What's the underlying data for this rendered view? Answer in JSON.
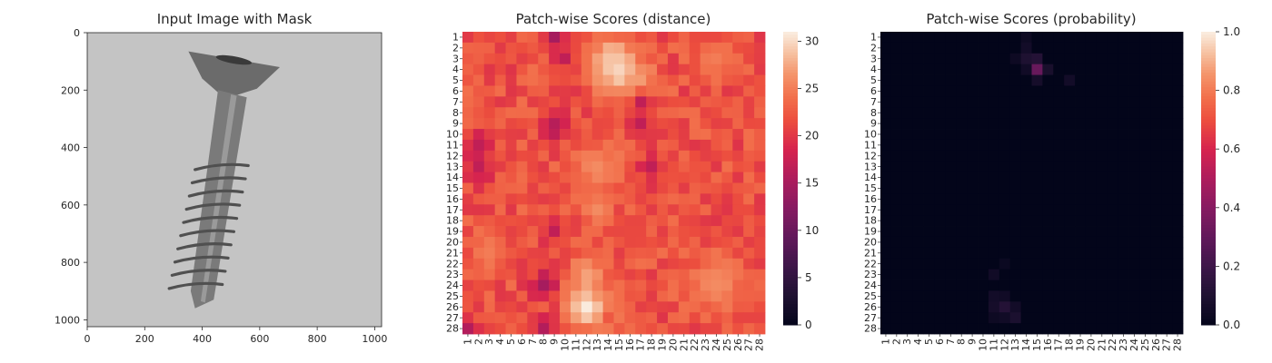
{
  "chart_data": [
    {
      "type": "image",
      "title": "Input Image with Mask",
      "xlim": [
        0,
        1024
      ],
      "ylim": [
        1024,
        0
      ],
      "xticks": [
        0,
        200,
        400,
        600,
        800,
        1000
      ],
      "yticks": [
        0,
        200,
        400,
        600,
        800,
        1000
      ],
      "background_gray": "#c4c4c4",
      "screw_color": "#6b6b6b",
      "mask_visible": false
    },
    {
      "type": "heatmap",
      "title": "Patch-wise Scores (distance)",
      "rows": 28,
      "cols": 28,
      "row_labels": [
        "1",
        "2",
        "3",
        "4",
        "5",
        "6",
        "7",
        "8",
        "9",
        "10",
        "11",
        "12",
        "13",
        "14",
        "15",
        "16",
        "17",
        "18",
        "19",
        "20",
        "21",
        "22",
        "23",
        "24",
        "25",
        "26",
        "27",
        "28"
      ],
      "col_labels": [
        "1",
        "2",
        "3",
        "4",
        "5",
        "6",
        "7",
        "8",
        "9",
        "10",
        "11",
        "12",
        "13",
        "14",
        "15",
        "16",
        "17",
        "18",
        "19",
        "20",
        "21",
        "22",
        "23",
        "24",
        "25",
        "26",
        "27",
        "28"
      ],
      "colorbar": {
        "min": 0,
        "max": 31,
        "ticks": [
          0,
          5,
          10,
          15,
          20,
          25,
          30
        ]
      },
      "colormap": "rocket",
      "baseline_value": 22,
      "hotspots": [
        {
          "row": 4,
          "col": 15,
          "value": 31,
          "spread": 1.4
        },
        {
          "row": 3,
          "col": 14,
          "value": 29,
          "spread": 1.2
        },
        {
          "row": 5,
          "col": 17,
          "value": 27,
          "spread": 0.9
        },
        {
          "row": 13,
          "col": 13,
          "value": 26,
          "spread": 1.6
        },
        {
          "row": 17,
          "col": 13,
          "value": 26,
          "spread": 1.0
        },
        {
          "row": 23,
          "col": 12,
          "value": 27,
          "spread": 1.2
        },
        {
          "row": 26,
          "col": 12,
          "value": 31,
          "spread": 1.3
        },
        {
          "row": 24,
          "col": 24,
          "value": 26,
          "spread": 1.8
        },
        {
          "row": 21,
          "col": 3,
          "value": 25,
          "spread": 1.2
        },
        {
          "row": 3,
          "col": 24,
          "value": 25,
          "spread": 1.3
        }
      ],
      "coldspots": [
        {
          "row": 1,
          "col": 9,
          "value": 15,
          "spread": 0.7
        },
        {
          "row": 3,
          "col": 10,
          "value": 17,
          "spread": 0.7
        },
        {
          "row": 9,
          "col": 9,
          "value": 16,
          "spread": 0.7
        },
        {
          "row": 10,
          "col": 9,
          "value": 17,
          "spread": 0.7
        },
        {
          "row": 11,
          "col": 2,
          "value": 17,
          "spread": 0.9
        },
        {
          "row": 13,
          "col": 2,
          "value": 17,
          "spread": 0.9
        },
        {
          "row": 19,
          "col": 9,
          "value": 17,
          "spread": 0.7
        },
        {
          "row": 24,
          "col": 8,
          "value": 15,
          "spread": 0.9
        },
        {
          "row": 28,
          "col": 8,
          "value": 16,
          "spread": 0.7
        },
        {
          "row": 28,
          "col": 1,
          "value": 16,
          "spread": 0.7
        },
        {
          "row": 7,
          "col": 17,
          "value": 17,
          "spread": 0.6
        },
        {
          "row": 13,
          "col": 18,
          "value": 17,
          "spread": 0.8
        },
        {
          "row": 9,
          "col": 17,
          "value": 17,
          "spread": 0.6
        }
      ]
    },
    {
      "type": "heatmap",
      "title": "Patch-wise Scores (probability)",
      "rows": 28,
      "cols": 28,
      "row_labels": [
        "1",
        "2",
        "3",
        "4",
        "5",
        "6",
        "7",
        "8",
        "9",
        "10",
        "11",
        "12",
        "13",
        "14",
        "15",
        "16",
        "17",
        "18",
        "19",
        "20",
        "21",
        "22",
        "23",
        "24",
        "25",
        "26",
        "27",
        "28"
      ],
      "col_labels": [
        "1",
        "2",
        "3",
        "4",
        "5",
        "6",
        "7",
        "8",
        "9",
        "10",
        "11",
        "12",
        "13",
        "14",
        "15",
        "16",
        "17",
        "18",
        "19",
        "20",
        "21",
        "22",
        "23",
        "24",
        "25",
        "26",
        "27",
        "28"
      ],
      "colorbar": {
        "min": 0,
        "max": 1,
        "ticks": [
          "0.0",
          "0.2",
          "0.4",
          "0.6",
          "0.8",
          "1.0"
        ]
      },
      "colormap": "rocket",
      "baseline_value": 0.0,
      "cells": [
        {
          "row": 1,
          "col": 14,
          "value": 0.04
        },
        {
          "row": 2,
          "col": 14,
          "value": 0.06
        },
        {
          "row": 3,
          "col": 14,
          "value": 0.1
        },
        {
          "row": 3,
          "col": 15,
          "value": 0.12
        },
        {
          "row": 3,
          "col": 13,
          "value": 0.04
        },
        {
          "row": 4,
          "col": 15,
          "value": 0.32
        },
        {
          "row": 4,
          "col": 16,
          "value": 0.08
        },
        {
          "row": 4,
          "col": 14,
          "value": 0.05
        },
        {
          "row": 5,
          "col": 15,
          "value": 0.07
        },
        {
          "row": 5,
          "col": 18,
          "value": 0.06
        },
        {
          "row": 22,
          "col": 12,
          "value": 0.03
        },
        {
          "row": 23,
          "col": 11,
          "value": 0.05
        },
        {
          "row": 25,
          "col": 11,
          "value": 0.06
        },
        {
          "row": 25,
          "col": 12,
          "value": 0.05
        },
        {
          "row": 26,
          "col": 12,
          "value": 0.12
        },
        {
          "row": 26,
          "col": 11,
          "value": 0.07
        },
        {
          "row": 26,
          "col": 13,
          "value": 0.06
        },
        {
          "row": 27,
          "col": 13,
          "value": 0.09
        },
        {
          "row": 27,
          "col": 12,
          "value": 0.05
        },
        {
          "row": 27,
          "col": 11,
          "value": 0.04
        }
      ]
    }
  ]
}
